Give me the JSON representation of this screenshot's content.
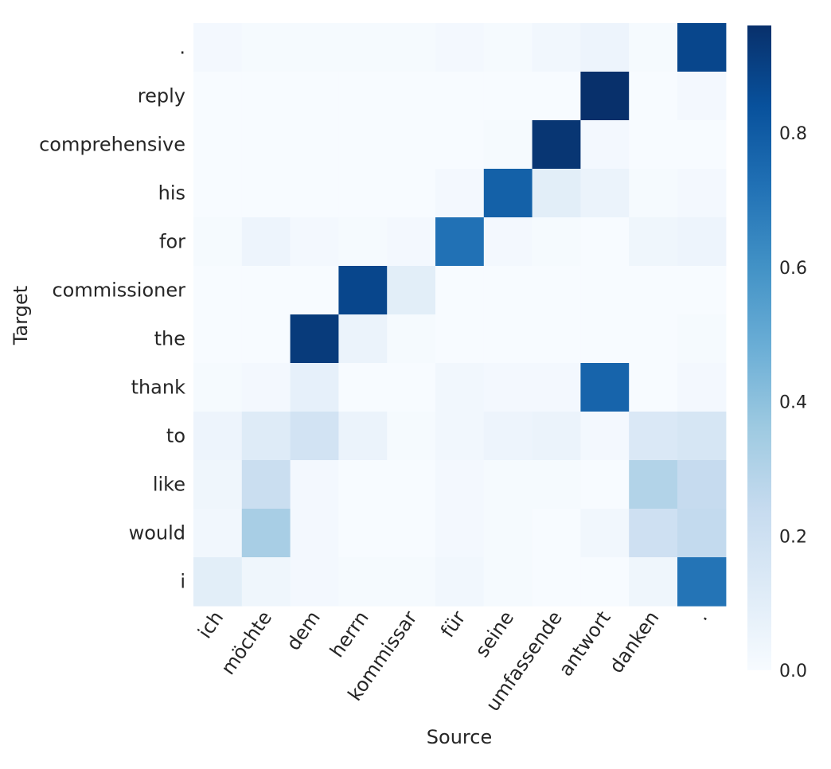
{
  "chart_data": {
    "type": "heatmap",
    "title": "",
    "xlabel": "Source",
    "ylabel": "Target",
    "x_categories": [
      "ich",
      "möchte",
      "dem",
      "herrn",
      "kommissar",
      "für",
      "seine",
      "umfassende",
      "antwort",
      "danken",
      "."
    ],
    "y_categories_top_to_bottom": [
      ".",
      "reply",
      "comprehensive",
      "his",
      "for",
      "commissioner",
      "the",
      "thank",
      "to",
      "like",
      "would",
      "i"
    ],
    "values": [
      [
        0.02,
        0.01,
        0.01,
        0.01,
        0.01,
        0.02,
        0.01,
        0.03,
        0.05,
        0.01,
        0.88
      ],
      [
        0.0,
        0.0,
        0.0,
        0.0,
        0.0,
        0.0,
        0.0,
        0.0,
        0.96,
        0.0,
        0.02
      ],
      [
        0.0,
        0.0,
        0.0,
        0.0,
        0.0,
        0.0,
        0.01,
        0.94,
        0.02,
        0.0,
        0.0
      ],
      [
        0.0,
        0.0,
        0.0,
        0.0,
        0.0,
        0.02,
        0.78,
        0.1,
        0.06,
        0.01,
        0.02
      ],
      [
        0.01,
        0.05,
        0.02,
        0.01,
        0.02,
        0.72,
        0.02,
        0.01,
        0.0,
        0.04,
        0.05
      ],
      [
        0.0,
        0.0,
        0.0,
        0.88,
        0.1,
        0.0,
        0.0,
        0.0,
        0.0,
        0.0,
        0.0
      ],
      [
        0.0,
        0.0,
        0.92,
        0.06,
        0.01,
        0.0,
        0.0,
        0.0,
        0.0,
        0.0,
        0.01
      ],
      [
        0.01,
        0.02,
        0.08,
        0.0,
        0.0,
        0.03,
        0.02,
        0.02,
        0.77,
        0.0,
        0.02
      ],
      [
        0.05,
        0.12,
        0.18,
        0.06,
        0.01,
        0.03,
        0.05,
        0.06,
        0.02,
        0.14,
        0.16
      ],
      [
        0.04,
        0.22,
        0.02,
        0.0,
        0.0,
        0.02,
        0.01,
        0.01,
        0.0,
        0.3,
        0.24
      ],
      [
        0.03,
        0.33,
        0.02,
        0.0,
        0.0,
        0.02,
        0.01,
        0.0,
        0.03,
        0.2,
        0.25
      ],
      [
        0.1,
        0.04,
        0.02,
        0.01,
        0.01,
        0.03,
        0.01,
        0.0,
        0.0,
        0.04,
        0.71
      ]
    ],
    "colormap": "Blues",
    "colorbar": {
      "min": 0.0,
      "max": 0.96,
      "ticks": [
        0.0,
        0.2,
        0.4,
        0.6,
        0.8
      ],
      "tick_labels": [
        "0.0",
        "0.2",
        "0.4",
        "0.6",
        "0.8"
      ]
    },
    "grid": false
  }
}
